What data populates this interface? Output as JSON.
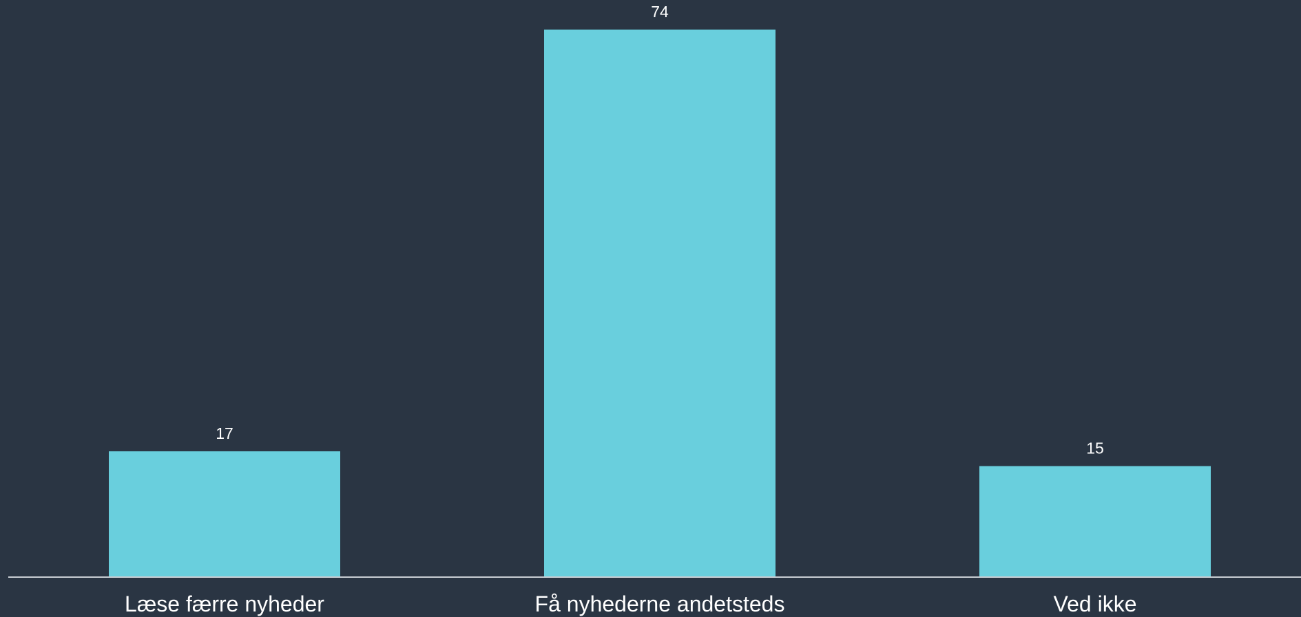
{
  "chart_data": {
    "type": "bar",
    "categories": [
      "Læse færre nyheder",
      "Få nyhederne andetsteds",
      "Ved ikke"
    ],
    "values": [
      17,
      74,
      15
    ],
    "title": "",
    "xlabel": "",
    "ylabel": "",
    "ylim": [
      0,
      74
    ],
    "grid": false,
    "legend": "none",
    "data_labels": true
  },
  "colors": {
    "background": "#2a3543",
    "bar": "#69cfdd",
    "axis": "#c9ced4",
    "text": "#ffffff"
  }
}
